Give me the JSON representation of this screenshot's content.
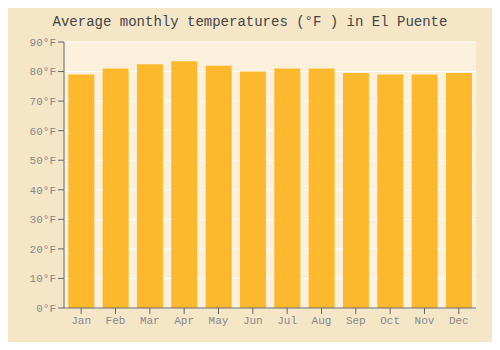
{
  "chart_data": {
    "type": "bar",
    "title": "Average monthly temperatures (°F ) in El Puente",
    "categories": [
      "Jan",
      "Feb",
      "Mar",
      "Apr",
      "May",
      "Jun",
      "Jul",
      "Aug",
      "Sep",
      "Oct",
      "Nov",
      "Dec"
    ],
    "values": [
      79.0,
      81.0,
      82.5,
      83.5,
      82.0,
      80.0,
      81.0,
      81.0,
      79.5,
      79.0,
      79.0,
      79.5
    ],
    "color": "#FDB92E",
    "ylim": [
      0,
      90
    ],
    "yticks": [
      {
        "value": 0,
        "label": "0°F"
      },
      {
        "value": 10,
        "label": "10°F"
      },
      {
        "value": 20,
        "label": "20°F"
      },
      {
        "value": 30,
        "label": "30°F"
      },
      {
        "value": 40,
        "label": "40°F"
      },
      {
        "value": 50,
        "label": "50°F"
      },
      {
        "value": 60,
        "label": "60°F"
      },
      {
        "value": 70,
        "label": "70°F"
      },
      {
        "value": 80,
        "label": "80°F"
      },
      {
        "value": 90,
        "label": "90°F"
      }
    ],
    "grid": true
  }
}
